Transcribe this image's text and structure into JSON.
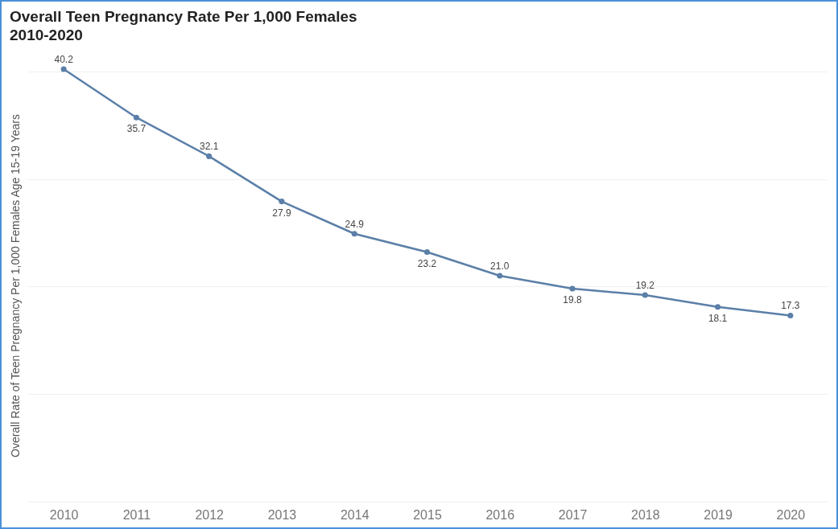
{
  "chart_data": {
    "type": "line",
    "title": "Overall Teen Pregnancy Rate Per 1,000 Females",
    "subtitle": "2010-2020",
    "ylabel": "Overall Rate of Teen Pregnancy Per 1,000 Females Age 15-19 Years",
    "categories": [
      "2010",
      "2011",
      "2012",
      "2013",
      "2014",
      "2015",
      "2016",
      "2017",
      "2018",
      "2019",
      "2020"
    ],
    "series": [
      {
        "color": "#5b7fa8",
        "values": [
          40.2,
          35.7,
          32.1,
          27.9,
          24.9,
          23.2,
          21.0,
          19.8,
          19.2,
          18.1,
          17.3
        ],
        "value_labels": [
          "40.2",
          "35.7",
          "32.1",
          "27.9",
          "24.9",
          "23.2",
          "21.0",
          "19.8",
          "19.2",
          "18.1",
          "17.3"
        ]
      }
    ],
    "yticks": [
      {
        "value": 0,
        "label": null
      },
      {
        "value": 10,
        "label": null
      },
      {
        "value": 20,
        "label": null
      },
      {
        "value": 30,
        "label": null
      },
      {
        "value": 40,
        "label": null
      }
    ],
    "grid": "y",
    "tick_labels": "x",
    "marker": "circle",
    "line_style": "solid"
  }
}
